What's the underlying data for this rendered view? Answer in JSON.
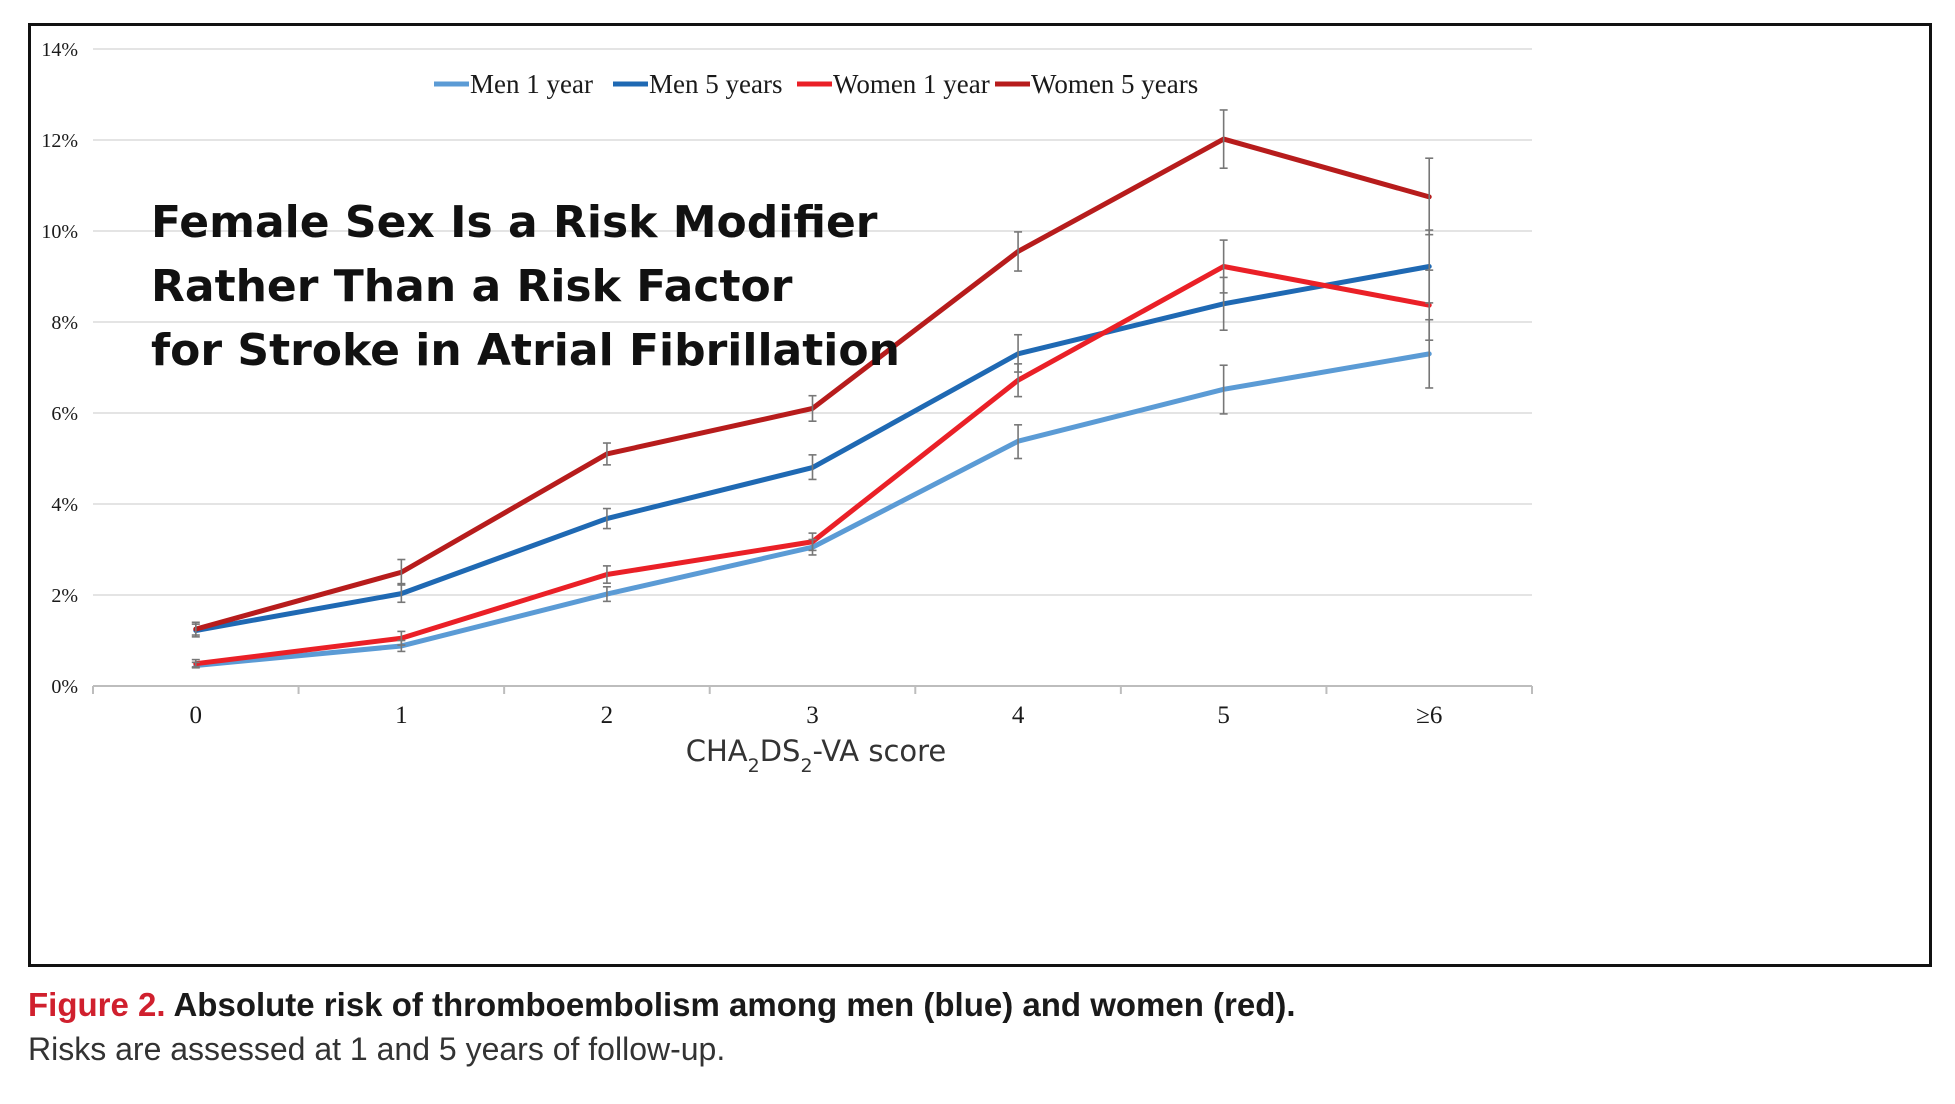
{
  "overlay_title": [
    "Female Sex Is a Risk Modifier",
    "Rather Than a Risk Factor",
    "for Stroke in Atrial Fibrillation"
  ],
  "caption": {
    "label": "Figure 2.",
    "bold_text": " Absolute risk of thromboembolism among men (blue) and women (red).",
    "text": "Risks are assessed at 1 and 5 years of follow-up."
  },
  "chart_data": {
    "type": "line",
    "title": "",
    "xlabel_parts": [
      "CHA",
      "2",
      "DS",
      "2",
      "-VA score"
    ],
    "ylabel": "",
    "categories": [
      "0",
      "1",
      "2",
      "3",
      "4",
      "5",
      "≥6"
    ],
    "y_ticks": [
      "0%",
      "2%",
      "4%",
      "6%",
      "8%",
      "10%",
      "12%",
      "14%"
    ],
    "ylim": [
      0,
      14
    ],
    "grid": true,
    "legend_position": "top",
    "series": [
      {
        "name": "Men 1 year",
        "color": "#5b9bd5",
        "values": [
          0.45,
          0.88,
          2.02,
          3.05,
          5.38,
          6.52,
          7.3
        ],
        "error_low": [
          0.4,
          0.76,
          1.86,
          2.88,
          5.0,
          5.98,
          6.55
        ],
        "error_high": [
          0.52,
          1.0,
          2.18,
          3.22,
          5.74,
          7.05,
          8.05
        ]
      },
      {
        "name": "Men 5 years",
        "color": "#1f69b3",
        "values": [
          1.22,
          2.03,
          3.68,
          4.8,
          7.3,
          8.4,
          9.22
        ],
        "error_low": [
          1.08,
          1.84,
          3.46,
          4.54,
          6.9,
          7.82,
          8.42
        ],
        "error_high": [
          1.36,
          2.22,
          3.9,
          5.08,
          7.72,
          8.98,
          10.02
        ]
      },
      {
        "name": "Women 1 year",
        "color": "#ea2027",
        "values": [
          0.49,
          1.05,
          2.45,
          3.17,
          6.72,
          9.22,
          8.37
        ],
        "error_low": [
          0.42,
          0.9,
          2.26,
          2.98,
          6.36,
          8.64,
          7.6
        ],
        "error_high": [
          0.58,
          1.2,
          2.64,
          3.36,
          7.08,
          9.8,
          9.14
        ]
      },
      {
        "name": "Women 5 years",
        "color": "#b71c1c",
        "values": [
          1.25,
          2.5,
          5.1,
          6.1,
          9.55,
          12.02,
          10.75
        ],
        "error_low": [
          1.12,
          2.25,
          4.86,
          5.82,
          9.12,
          11.38,
          9.92
        ],
        "error_high": [
          1.4,
          2.78,
          5.34,
          6.38,
          9.98,
          12.66,
          11.6
        ]
      }
    ]
  }
}
